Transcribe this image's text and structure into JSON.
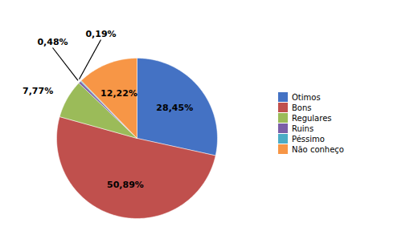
{
  "chart_data": {
    "type": "pie",
    "categories": [
      "Ótimos",
      "Bons",
      "Regulares",
      "Ruins",
      "Péssimo",
      "Não conheço"
    ],
    "values": [
      28.45,
      50.89,
      7.77,
      0.48,
      0.19,
      12.22
    ],
    "value_labels": [
      "28,45%",
      "50,89%",
      "7,77%",
      "0,48%",
      "0,19%",
      "12,22%"
    ],
    "colors": [
      "#4472C4",
      "#C0504D",
      "#9BBB59",
      "#7B5EA7",
      "#4BACC6",
      "#F79646"
    ],
    "data_labels": true,
    "legend": "right"
  }
}
